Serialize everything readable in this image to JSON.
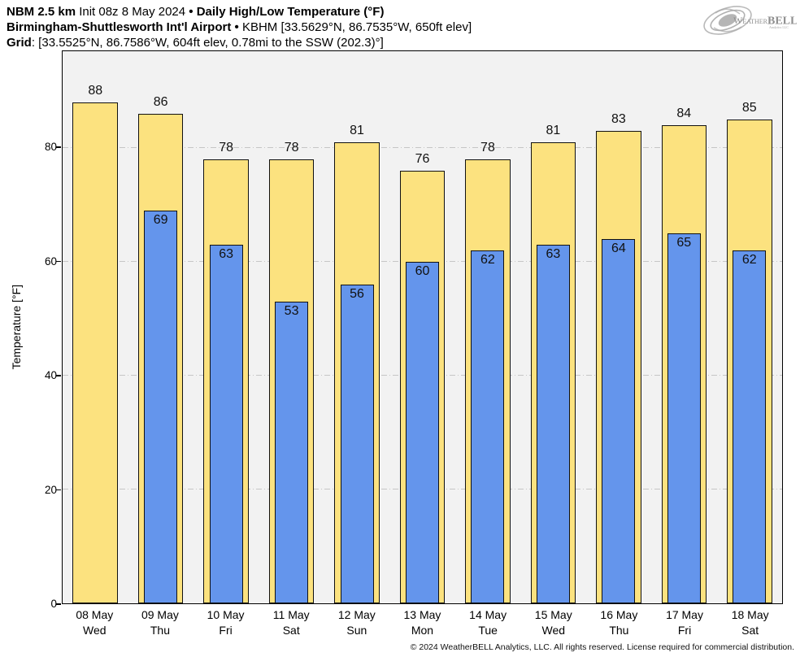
{
  "header": {
    "model": "NBM 2.5 km",
    "init": " Init 08z 8 May 2024 ",
    "bullet1": "•",
    "product": " Daily High/Low Temperature (°F)",
    "station_name": "Birmingham-Shuttlesworth Int'l Airport",
    "bullet2": "•",
    "station_info": " KBHM [33.5629°N, 86.7535°W, 650ft elev]",
    "grid_label": "Grid",
    "grid_info": ": [33.5525°N, 86.7586°W, 604ft elev, 0.78mi to the SSW (202.3)°]"
  },
  "logo": {
    "name": "weatherbell-logo",
    "text_weather": "Weather",
    "text_bell": "BELL",
    "subtext": "Analytics LLC",
    "color": "#9a9a9a"
  },
  "chart_data": {
    "type": "bar",
    "title": "",
    "xlabel": "",
    "ylabel": "Temperature [°F]",
    "ylim": [
      0,
      97
    ],
    "yticks": [
      0,
      20,
      40,
      60,
      80
    ],
    "grid": "horizontal dash-dot at 20/40/60/80",
    "legend_position": "none",
    "plot_bg": "#f2f2f2",
    "gridline_color": "#c6c6c6",
    "categories": [
      {
        "date": "08 May",
        "day": "Wed"
      },
      {
        "date": "09 May",
        "day": "Thu"
      },
      {
        "date": "10 May",
        "day": "Fri"
      },
      {
        "date": "11 May",
        "day": "Sat"
      },
      {
        "date": "12 May",
        "day": "Sun"
      },
      {
        "date": "13 May",
        "day": "Mon"
      },
      {
        "date": "14 May",
        "day": "Tue"
      },
      {
        "date": "15 May",
        "day": "Wed"
      },
      {
        "date": "16 May",
        "day": "Thu"
      },
      {
        "date": "17 May",
        "day": "Fri"
      },
      {
        "date": "18 May",
        "day": "Sat"
      }
    ],
    "series": [
      {
        "name": "Daily High",
        "color": "#fce27f",
        "values": [
          88,
          86,
          78,
          78,
          81,
          76,
          78,
          81,
          83,
          84,
          85
        ]
      },
      {
        "name": "Daily Low",
        "color": "#6495ec",
        "values": [
          null,
          69,
          63,
          53,
          56,
          60,
          62,
          63,
          64,
          65,
          62
        ]
      }
    ]
  },
  "footer": {
    "copyright": "© 2024 WeatherBELL Analytics, LLC. All rights reserved. License required for commercial distribution."
  }
}
